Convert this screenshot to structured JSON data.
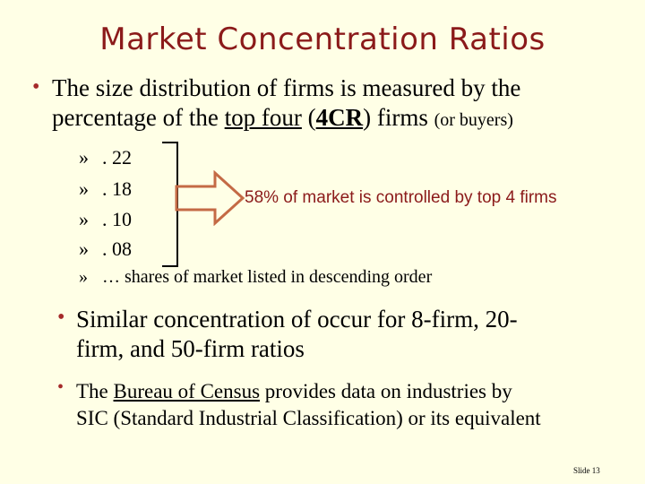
{
  "title": "Market Concentration Ratios",
  "bullet1": {
    "line1": "The size distribution of firms is measured by the",
    "line2_pre": "percentage of the ",
    "line2_u": "top four",
    "line2_mid1": " (",
    "line2_bold": "4CR",
    "line2_mid2": ") firms ",
    "line2_small": "(or buyers)"
  },
  "sub_items": [
    ". 22",
    ". 18",
    ". 10",
    ". 08",
    "… shares of market listed in descending order"
  ],
  "sub_marker": "»",
  "callout": "58% of market is controlled by top 4 firms",
  "bullet2": {
    "line1": "Similar concentration of occur for 8-firm, 20-",
    "line2": "firm, and 50-firm ratios"
  },
  "bullet3": {
    "pre": "The ",
    "link": "Bureau of Census",
    "post": " provides data on industries by",
    "line2": "SIC (Standard Industrial Classification) or its equivalent"
  },
  "slide_number": "Slide 13",
  "colors": {
    "title": "#8B1A1A",
    "bullet": "#A52A2A",
    "arrow": "#C46A45",
    "background": "#FFFFE6"
  }
}
